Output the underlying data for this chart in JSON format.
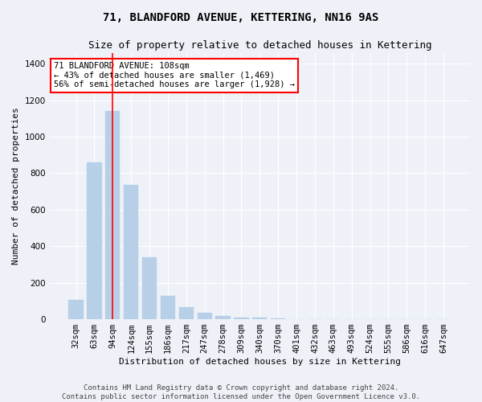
{
  "title": "71, BLANDFORD AVENUE, KETTERING, NN16 9AS",
  "subtitle": "Size of property relative to detached houses in Kettering",
  "xlabel": "Distribution of detached houses by size in Kettering",
  "ylabel": "Number of detached properties",
  "bar_color": "#b8cfe8",
  "bar_edge_color": "#b8cfe8",
  "categories": [
    "32sqm",
    "63sqm",
    "94sqm",
    "124sqm",
    "155sqm",
    "186sqm",
    "217sqm",
    "247sqm",
    "278sqm",
    "309sqm",
    "340sqm",
    "370sqm",
    "401sqm",
    "432sqm",
    "463sqm",
    "493sqm",
    "524sqm",
    "555sqm",
    "586sqm",
    "616sqm",
    "647sqm"
  ],
  "values": [
    105,
    860,
    1140,
    735,
    340,
    130,
    65,
    35,
    20,
    10,
    8,
    5,
    0,
    0,
    0,
    0,
    0,
    0,
    0,
    0,
    0
  ],
  "vline_x": 2,
  "annotation_text": "71 BLANDFORD AVENUE: 108sqm\n← 43% of detached houses are smaller (1,469)\n56% of semi-detached houses are larger (1,928) →",
  "annotation_box_color": "white",
  "annotation_box_edge_color": "red",
  "vline_color": "red",
  "ylim": [
    0,
    1460
  ],
  "yticks": [
    0,
    200,
    400,
    600,
    800,
    1000,
    1200,
    1400
  ],
  "background_color": "#eef2f8",
  "grid_color": "white",
  "footer_text": "Contains HM Land Registry data © Crown copyright and database right 2024.\nContains public sector information licensed under the Open Government Licence v3.0.",
  "title_fontsize": 10,
  "subtitle_fontsize": 9,
  "xlabel_fontsize": 8,
  "ylabel_fontsize": 8,
  "footer_fontsize": 6.5,
  "tick_fontsize": 7.5,
  "annot_fontsize": 7.5
}
